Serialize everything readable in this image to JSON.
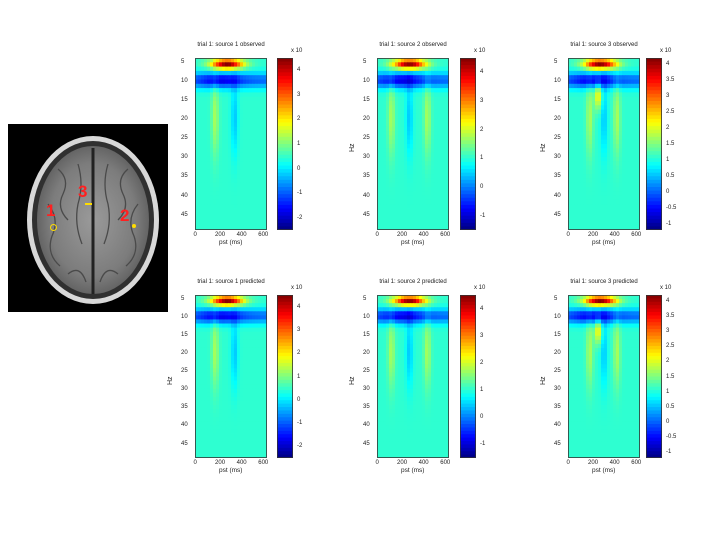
{
  "brain": {
    "markers": [
      {
        "label": "1"
      },
      {
        "label": "2"
      },
      {
        "label": "3"
      }
    ]
  },
  "colors": {
    "jet_low": "#00008f",
    "jet_mid": "#00cfff",
    "jet_high": "#ff3000",
    "marker": "#ff2020",
    "marker_dot": "#ffdd00"
  },
  "chart_data": [
    {
      "type": "heatmap",
      "title": "trial 1: source 1 observed",
      "xlabel": "pst (ms)",
      "ylabel": "",
      "x_ticks": [
        "0",
        "200",
        "400",
        "600"
      ],
      "y_ticks": [
        "5",
        "10",
        "15",
        "20",
        "25",
        "30",
        "35",
        "40",
        "45"
      ],
      "colorbar_ticks": [
        "4",
        "3",
        "2",
        "1",
        "0",
        "-1",
        "-2"
      ],
      "colorbar_multiplier": "x 10",
      "colorbar_range": [
        -2.5,
        4.5
      ]
    },
    {
      "type": "heatmap",
      "title": "trial 1: source 2 observed",
      "xlabel": "pst (ms)",
      "ylabel": "Hz",
      "x_ticks": [
        "0",
        "200",
        "400",
        "600"
      ],
      "y_ticks": [
        "5",
        "10",
        "15",
        "20",
        "25",
        "30",
        "35",
        "40",
        "45"
      ],
      "colorbar_ticks": [
        "4",
        "3",
        "2",
        "1",
        "0",
        "-1"
      ],
      "colorbar_multiplier": "x 10",
      "colorbar_range": [
        -1.5,
        4.5
      ]
    },
    {
      "type": "heatmap",
      "title": "trial 1: source 3 observed",
      "xlabel": "pst (ms)",
      "ylabel": "Hz",
      "x_ticks": [
        "0",
        "200",
        "400",
        "600"
      ],
      "y_ticks": [
        "5",
        "10",
        "15",
        "20",
        "25",
        "30",
        "35",
        "40",
        "45"
      ],
      "colorbar_ticks": [
        "4",
        "3.5",
        "3",
        "2.5",
        "2",
        "1.5",
        "1",
        "0.5",
        "0",
        "-0.5",
        "-1"
      ],
      "colorbar_multiplier": "x 10",
      "colorbar_range": [
        -1.2,
        4.2
      ]
    },
    {
      "type": "heatmap",
      "title": "trial 1: source 1 predicted",
      "xlabel": "pst (ms)",
      "ylabel": "Hz",
      "x_ticks": [
        "0",
        "200",
        "400",
        "600"
      ],
      "y_ticks": [
        "5",
        "10",
        "15",
        "20",
        "25",
        "30",
        "35",
        "40",
        "45"
      ],
      "colorbar_ticks": [
        "4",
        "3",
        "2",
        "1",
        "0",
        "-1",
        "-2"
      ],
      "colorbar_multiplier": "x 10",
      "colorbar_range": [
        -2.5,
        4.5
      ]
    },
    {
      "type": "heatmap",
      "title": "trial 1: source 2 predicted",
      "xlabel": "pst (ms)",
      "ylabel": "Hz",
      "x_ticks": [
        "0",
        "200",
        "400",
        "600"
      ],
      "y_ticks": [
        "5",
        "10",
        "15",
        "20",
        "25",
        "30",
        "35",
        "40",
        "45"
      ],
      "colorbar_ticks": [
        "4",
        "3",
        "2",
        "1",
        "0",
        "-1"
      ],
      "colorbar_multiplier": "x 10",
      "colorbar_range": [
        -1.5,
        4.5
      ]
    },
    {
      "type": "heatmap",
      "title": "trial 1: source 3 predicted",
      "xlabel": "pst (ms)",
      "ylabel": "Hz",
      "x_ticks": [
        "0",
        "200",
        "400",
        "600"
      ],
      "y_ticks": [
        "5",
        "10",
        "15",
        "20",
        "25",
        "30",
        "35",
        "40",
        "45"
      ],
      "colorbar_ticks": [
        "4",
        "3.5",
        "3",
        "2.5",
        "2",
        "1.5",
        "1",
        "0.5",
        "0",
        "-0.5",
        "-1"
      ],
      "colorbar_multiplier": "x 10",
      "colorbar_range": [
        -1.2,
        4.2
      ]
    }
  ]
}
